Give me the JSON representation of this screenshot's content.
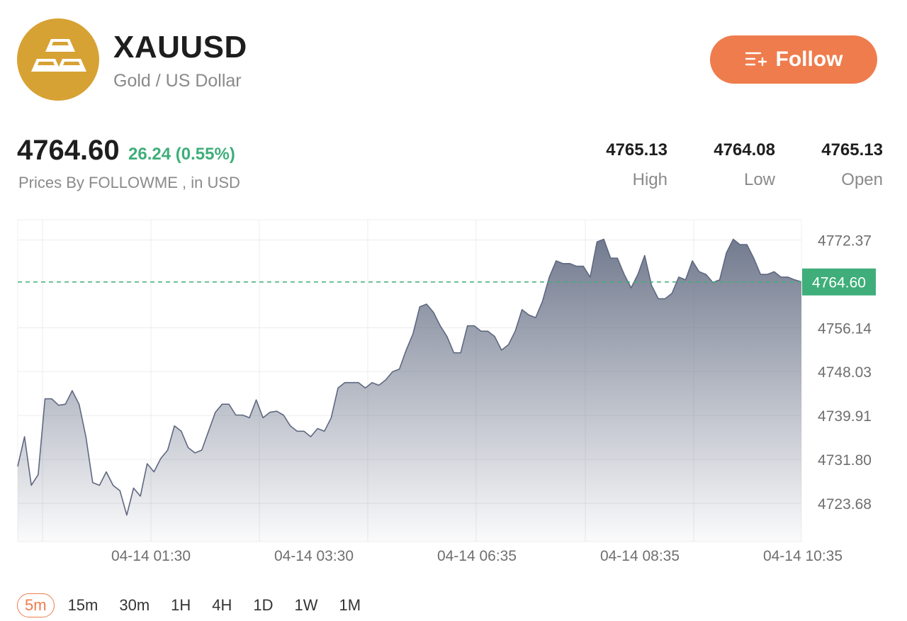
{
  "header": {
    "symbol": "XAUUSD",
    "name": "Gold / US Dollar",
    "logo_icon": "gold-bars-icon",
    "follow_label": "Follow",
    "follow_icon": "list-add-icon",
    "accent": "#ef7c4d",
    "logo_color": "#d7a234"
  },
  "quote": {
    "price": "4764.60",
    "change": "26.24 (0.55%)",
    "change_color": "#3fae7a",
    "source": "Prices By FOLLOWME , in USD"
  },
  "stats": [
    {
      "value": "4765.13",
      "label": "High"
    },
    {
      "value": "4764.08",
      "label": "Low"
    },
    {
      "value": "4765.13",
      "label": "Open"
    }
  ],
  "timeframes": [
    "5m",
    "15m",
    "30m",
    "1H",
    "4H",
    "1D",
    "1W",
    "1M"
  ],
  "active_timeframe": "5m",
  "chart_data": {
    "type": "area",
    "title": "",
    "xlabel": "",
    "ylabel": "",
    "x_ticks": [
      "04-14 01:30",
      "04-14 03:30",
      "04-14 06:35",
      "04-14 08:35",
      "04-14 10:35"
    ],
    "y_ticks": [
      "4772.37",
      "4764.60",
      "4756.14",
      "4748.03",
      "4739.91",
      "4731.80",
      "4723.68"
    ],
    "ylim": [
      4716.6,
      4776.1
    ],
    "current_price": 4764.6,
    "current_price_label": "4764.60",
    "current_price_color": "#3fae7a",
    "grid": true,
    "line_color": "#5f6880",
    "series": [
      {
        "values": [
          4730.5,
          4736.0,
          4727.0,
          4729.0,
          4743.0,
          4743.0,
          4741.8,
          4742.0,
          4744.5,
          4742.0,
          4736.0,
          4727.5,
          4727.0,
          4729.5,
          4727.0,
          4726.0,
          4721.5,
          4726.5,
          4725.0,
          4731.0,
          4729.5,
          4732.0,
          4733.5,
          4738.0,
          4737.0,
          4734.0,
          4733.0,
          4733.5,
          4737.0,
          4740.5,
          4742.0,
          4742.0,
          4740.0,
          4740.0,
          4739.5,
          4742.8,
          4739.5,
          4740.5,
          4740.7,
          4740.0,
          4738.0,
          4737.0,
          4737.0,
          4736.0,
          4737.5,
          4737.0,
          4739.5,
          4745.0,
          4746.0,
          4746.0,
          4746.0,
          4745.0,
          4746.0,
          4745.5,
          4746.5,
          4748.0,
          4748.5,
          4752.0,
          4755.0,
          4760.0,
          4760.5,
          4759.0,
          4756.5,
          4754.5,
          4751.5,
          4751.5,
          4756.5,
          4756.5,
          4755.5,
          4755.5,
          4754.5,
          4752.0,
          4753.0,
          4755.5,
          4759.5,
          4758.5,
          4758.0,
          4761.0,
          4765.5,
          4768.5,
          4768.0,
          4768.0,
          4767.5,
          4767.5,
          4765.5,
          4772.0,
          4772.5,
          4769.0,
          4769.0,
          4766.0,
          4763.5,
          4766.0,
          4769.5,
          4764.0,
          4761.5,
          4761.5,
          4762.5,
          4765.5,
          4765.0,
          4768.5,
          4766.5,
          4766.0,
          4764.5,
          4765.0,
          4770.0,
          4772.5,
          4771.5,
          4771.5,
          4769.0,
          4766.0,
          4766.0,
          4766.5,
          4765.5,
          4765.5,
          4765.0,
          4764.6
        ]
      }
    ]
  }
}
